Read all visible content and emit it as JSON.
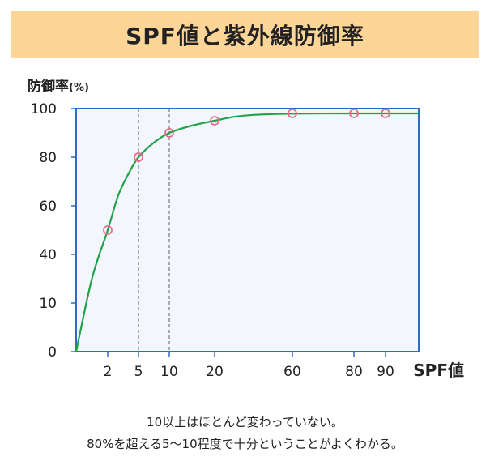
{
  "header": {
    "title": "SPF値と紫外線防御率"
  },
  "captions": {
    "line1": "10以上はほとんど変わっていない。",
    "line2": "80%を超える5～10程度で十分ということがよくわかる。"
  },
  "colors": {
    "title_band": "#fdd596",
    "curve": "#21a249",
    "marker": "#ec6b8f",
    "axis": "#2f6bc3",
    "plot_bg": "#f3f7fd",
    "guide": "#777777"
  },
  "chart_data": {
    "type": "line",
    "title": "SPF値と紫外線防御率",
    "ylabel": "防御率",
    "ylabel_unit": "(%)",
    "xlabel": "SPF値",
    "x_ticks": [
      2,
      5,
      10,
      20,
      60,
      80,
      90
    ],
    "y_ticks": [
      0,
      10,
      40,
      60,
      80,
      100
    ],
    "points": [
      {
        "x": 2,
        "y": 50
      },
      {
        "x": 5,
        "y": 80
      },
      {
        "x": 10,
        "y": 90
      },
      {
        "x": 20,
        "y": 95
      },
      {
        "x": 60,
        "y": 98
      },
      {
        "x": 80,
        "y": 98
      },
      {
        "x": 90,
        "y": 98
      }
    ],
    "curve": [
      {
        "x": 0,
        "y": 0
      },
      {
        "x": 1,
        "y": 25
      },
      {
        "x": 2,
        "y": 50
      },
      {
        "x": 3,
        "y": 64
      },
      {
        "x": 4,
        "y": 73
      },
      {
        "x": 5,
        "y": 80
      },
      {
        "x": 7.5,
        "y": 86
      },
      {
        "x": 10,
        "y": 90
      },
      {
        "x": 15,
        "y": 93
      },
      {
        "x": 20,
        "y": 95
      },
      {
        "x": 30,
        "y": 96.6
      },
      {
        "x": 40,
        "y": 97.4
      },
      {
        "x": 60,
        "y": 97.9
      },
      {
        "x": 80,
        "y": 98
      },
      {
        "x": 90,
        "y": 98
      },
      {
        "x": 100,
        "y": 98
      }
    ],
    "reference_lines_x": [
      5,
      10
    ],
    "grid": false,
    "legend": "none"
  }
}
